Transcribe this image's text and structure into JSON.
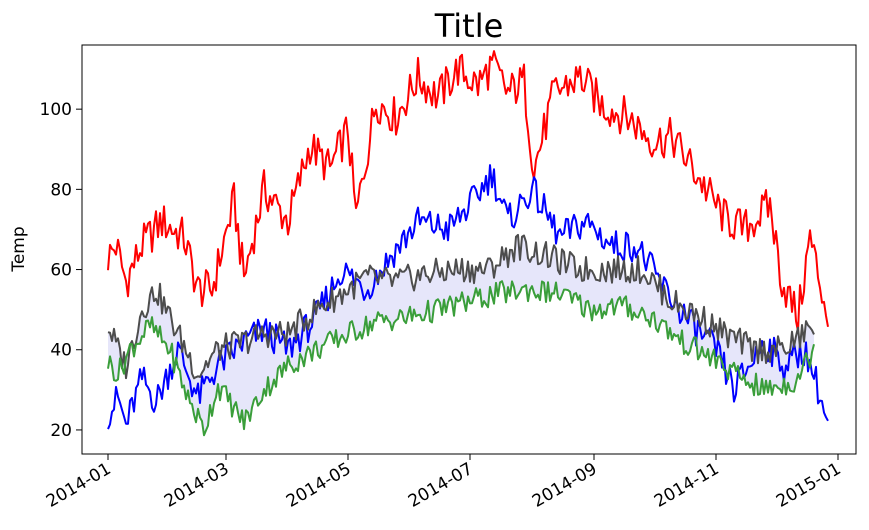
{
  "chart_data": {
    "type": "line",
    "title": "Title",
    "xlabel": "",
    "ylabel": "Temp",
    "x_start": "2014-01-01",
    "x_end": "2014-12-27",
    "xlim": [
      "2013-12-19",
      "2015-01-10"
    ],
    "ylim": [
      14,
      116
    ],
    "x_ticks": [
      "2014-01",
      "2014-03",
      "2014-05",
      "2014-07",
      "2014-09",
      "2014-11",
      "2015-01"
    ],
    "x_tick_dates": [
      "2014-01-01",
      "2014-03-01",
      "2014-05-01",
      "2014-07-01",
      "2014-09-01",
      "2014-11-01",
      "2015-01-01"
    ],
    "y_ticks": [
      20,
      40,
      60,
      80,
      100
    ],
    "grid": false,
    "series": [
      {
        "role": "max",
        "color": "#ff0000",
        "start": "2014-01-01",
        "end": "2014-12-27",
        "keypoints": [
          [
            "2014-01-01",
            63
          ],
          [
            "2014-01-05",
            66
          ],
          [
            "2014-01-10",
            57
          ],
          [
            "2014-01-18",
            66
          ],
          [
            "2014-01-28",
            72
          ],
          [
            "2014-02-08",
            68
          ],
          [
            "2014-02-15",
            55
          ],
          [
            "2014-02-22",
            55
          ],
          [
            "2014-03-05",
            77
          ],
          [
            "2014-03-10",
            58
          ],
          [
            "2014-03-20",
            80
          ],
          [
            "2014-04-01",
            72
          ],
          [
            "2014-04-12",
            91
          ],
          [
            "2014-04-22",
            85
          ],
          [
            "2014-05-01",
            95
          ],
          [
            "2014-05-05",
            73
          ],
          [
            "2014-05-15",
            102
          ],
          [
            "2014-05-25",
            98
          ],
          [
            "2014-06-05",
            108
          ],
          [
            "2014-06-15",
            103
          ],
          [
            "2014-06-25",
            110
          ],
          [
            "2014-07-05",
            106
          ],
          [
            "2014-07-12",
            111
          ],
          [
            "2014-07-20",
            104
          ],
          [
            "2014-07-28",
            107
          ],
          [
            "2014-08-02",
            85
          ],
          [
            "2014-08-12",
            104
          ],
          [
            "2014-08-25",
            108
          ],
          [
            "2014-09-05",
            101
          ],
          [
            "2014-09-18",
            98
          ],
          [
            "2014-10-01",
            92
          ],
          [
            "2014-10-10",
            93
          ],
          [
            "2014-10-22",
            84
          ],
          [
            "2014-11-05",
            73
          ],
          [
            "2014-11-15",
            70
          ],
          [
            "2014-11-28",
            76
          ],
          [
            "2014-12-04",
            57
          ],
          [
            "2014-12-12",
            48
          ],
          [
            "2014-12-18",
            68
          ],
          [
            "2014-12-27",
            48
          ]
        ]
      },
      {
        "role": "record_low",
        "color": "#0000ff",
        "start": "2014-01-01",
        "end": "2014-12-27",
        "keypoints": [
          [
            "2014-01-01",
            24
          ],
          [
            "2014-01-06",
            28
          ],
          [
            "2014-01-10",
            21
          ],
          [
            "2014-01-18",
            33
          ],
          [
            "2014-01-25",
            27
          ],
          [
            "2014-02-05",
            40
          ],
          [
            "2014-02-15",
            28
          ],
          [
            "2014-02-25",
            36
          ],
          [
            "2014-03-10",
            42
          ],
          [
            "2014-03-20",
            45
          ],
          [
            "2014-04-01",
            40
          ],
          [
            "2014-04-15",
            48
          ],
          [
            "2014-04-28",
            60
          ],
          [
            "2014-05-10",
            55
          ],
          [
            "2014-05-25",
            65
          ],
          [
            "2014-06-05",
            72
          ],
          [
            "2014-06-20",
            70
          ],
          [
            "2014-07-01",
            76
          ],
          [
            "2014-07-12",
            84
          ],
          [
            "2014-07-20",
            72
          ],
          [
            "2014-08-01",
            80
          ],
          [
            "2014-08-15",
            68
          ],
          [
            "2014-08-28",
            72
          ],
          [
            "2014-09-10",
            66
          ],
          [
            "2014-09-22",
            66
          ],
          [
            "2014-10-05",
            56
          ],
          [
            "2014-10-20",
            46
          ],
          [
            "2014-11-01",
            40
          ],
          [
            "2014-11-10",
            30
          ],
          [
            "2014-11-25",
            42
          ],
          [
            "2014-12-05",
            36
          ],
          [
            "2014-12-15",
            40
          ],
          [
            "2014-12-20",
            34
          ],
          [
            "2014-12-27",
            21
          ]
        ]
      },
      {
        "role": "mean",
        "color": "#4d4d4d",
        "start": "2014-01-01",
        "end": "2014-12-20",
        "keypoints": [
          [
            "2014-01-01",
            46
          ],
          [
            "2014-01-06",
            40
          ],
          [
            "2014-01-10",
            36
          ],
          [
            "2014-01-18",
            50
          ],
          [
            "2014-01-25",
            55
          ],
          [
            "2014-02-05",
            44
          ],
          [
            "2014-02-15",
            34
          ],
          [
            "2014-02-25",
            40
          ],
          [
            "2014-03-10",
            42
          ],
          [
            "2014-03-20",
            44
          ],
          [
            "2014-04-01",
            44
          ],
          [
            "2014-04-15",
            50
          ],
          [
            "2014-05-01",
            55
          ],
          [
            "2014-05-10",
            58
          ],
          [
            "2014-05-25",
            57
          ],
          [
            "2014-06-10",
            59
          ],
          [
            "2014-06-25",
            60
          ],
          [
            "2014-07-10",
            60
          ],
          [
            "2014-07-25",
            66
          ],
          [
            "2014-08-10",
            63
          ],
          [
            "2014-08-25",
            60
          ],
          [
            "2014-09-10",
            60
          ],
          [
            "2014-09-25",
            60
          ],
          [
            "2014-10-10",
            52
          ],
          [
            "2014-10-25",
            48
          ],
          [
            "2014-11-05",
            44
          ],
          [
            "2014-11-20",
            40
          ],
          [
            "2014-12-05",
            40
          ],
          [
            "2014-12-20",
            46
          ]
        ]
      },
      {
        "role": "min",
        "color": "#3a9e3a",
        "start": "2014-01-01",
        "end": "2014-12-20",
        "keypoints": [
          [
            "2014-01-01",
            37
          ],
          [
            "2014-01-06",
            34
          ],
          [
            "2014-01-12",
            40
          ],
          [
            "2014-01-22",
            46
          ],
          [
            "2014-02-01",
            40
          ],
          [
            "2014-02-10",
            28
          ],
          [
            "2014-02-18",
            20
          ],
          [
            "2014-02-25",
            31
          ],
          [
            "2014-03-10",
            22
          ],
          [
            "2014-03-20",
            30
          ],
          [
            "2014-04-01",
            36
          ],
          [
            "2014-04-15",
            40
          ],
          [
            "2014-05-01",
            44
          ],
          [
            "2014-05-15",
            47
          ],
          [
            "2014-05-30",
            48
          ],
          [
            "2014-06-15",
            50
          ],
          [
            "2014-06-30",
            52
          ],
          [
            "2014-07-15",
            54
          ],
          [
            "2014-07-30",
            55
          ],
          [
            "2014-08-15",
            54
          ],
          [
            "2014-08-30",
            50
          ],
          [
            "2014-09-15",
            51
          ],
          [
            "2014-09-30",
            48
          ],
          [
            "2014-10-15",
            42
          ],
          [
            "2014-10-30",
            38
          ],
          [
            "2014-11-10",
            34
          ],
          [
            "2014-11-25",
            30
          ],
          [
            "2014-12-10",
            32
          ],
          [
            "2014-12-20",
            40
          ]
        ]
      }
    ],
    "fill_between": {
      "upper": "mean",
      "lower": "min",
      "color": "#e6e6fa"
    }
  }
}
